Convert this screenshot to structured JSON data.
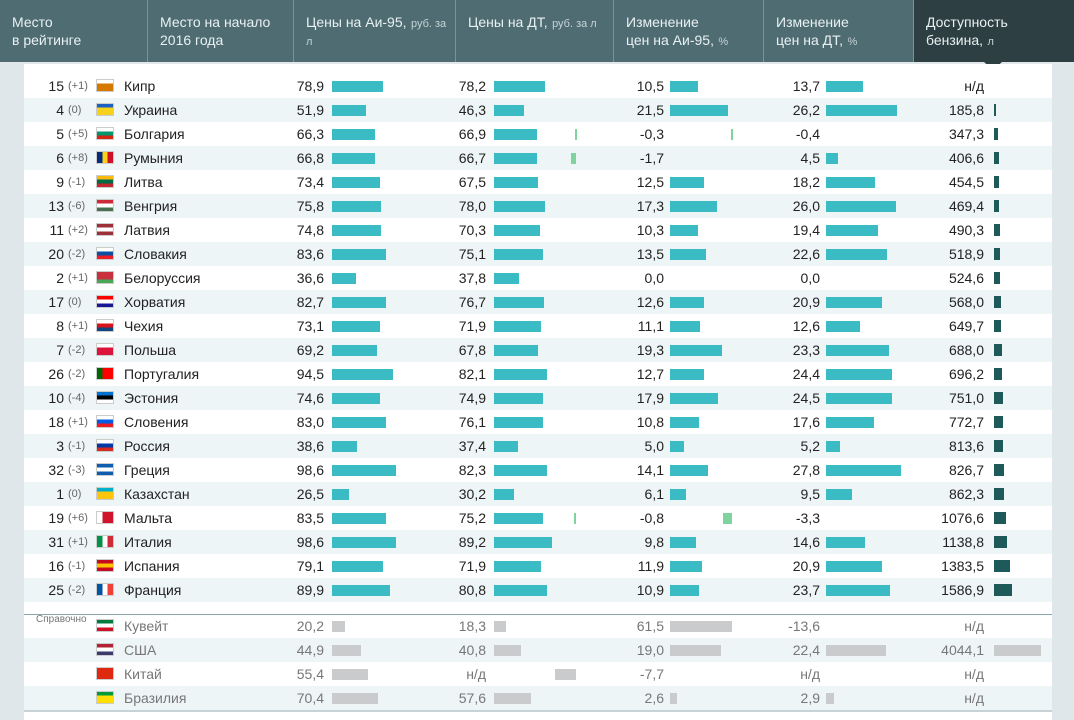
{
  "header": [
    {
      "title": "Место\nв рейтинге",
      "unit": ""
    },
    {
      "title": "Место на начало\n2016 года",
      "unit": ""
    },
    {
      "title": "Цены на Аи-95,",
      "unit": "руб. за л"
    },
    {
      "title": "Цены на ДТ,",
      "unit": "руб. за л"
    },
    {
      "title": "Изменение\nцен на Аи-95,",
      "unit": "%"
    },
    {
      "title": "Изменение\nцен на ДТ,",
      "unit": "%"
    },
    {
      "title": "Доступность\nбензина,",
      "unit": "л"
    }
  ],
  "reference_label": "Справочно",
  "colors": {
    "header": "#4f6c72",
    "header_active": "#2d3f43",
    "bar": "#3bbcc4",
    "bar_negative": "#7fd39f",
    "bar_reference": "#c9cbcd",
    "bar_affordability": "#1f5a5a"
  },
  "chart_data": {
    "type": "table",
    "columns": [
      "Место в рейтинге",
      "Место на начало 2016 года",
      "Цены на Аи-95",
      "Цены на ДТ",
      "Изменение цен на Аи-95",
      "Изменение цен на ДТ",
      "Доступность бензина"
    ],
    "rows": [
      {
        "rank": "15",
        "change": "(+1)",
        "country": "Кипр",
        "flag": "#ffffff",
        "flag2": "#d57800",
        "ai95": "78,9",
        "ai95_v": 78.9,
        "dt": "78,2",
        "dt_v": 78.2,
        "ai95_chg": "10,5",
        "ai95_chg_v": 10.5,
        "dt_chg": "13,7",
        "dt_chg_v": 13.7,
        "afford": "н/д",
        "afford_v": 0
      },
      {
        "rank": "4",
        "change": "(0)",
        "country": "Украина",
        "flag": "#1c5fc5",
        "flag2": "#f7d21c",
        "ai95": "51,9",
        "ai95_v": 51.9,
        "dt": "46,3",
        "dt_v": 46.3,
        "ai95_chg": "21,5",
        "ai95_chg_v": 21.5,
        "dt_chg": "26,2",
        "dt_chg_v": 26.2,
        "afford": "185,8",
        "afford_v": 185.8
      },
      {
        "rank": "5",
        "change": "(+5)",
        "country": "Болгария",
        "flag": "#ffffff",
        "flag2": "#00966e",
        "flag3": "#d62612",
        "ai95": "66,3",
        "ai95_v": 66.3,
        "dt": "66,9",
        "dt_v": 66.9,
        "ai95_chg": "-0,3",
        "ai95_chg_v": -0.3,
        "dt_chg": "-0,4",
        "dt_chg_v": -0.4,
        "afford": "347,3",
        "afford_v": 347.3
      },
      {
        "rank": "6",
        "change": "(+8)",
        "country": "Румыния",
        "flag": "#002b7f",
        "flag2": "#fcd116",
        "flag3": "#ce1126",
        "vertical": true,
        "ai95": "66,8",
        "ai95_v": 66.8,
        "dt": "66,7",
        "dt_v": 66.7,
        "ai95_chg": "-1,7",
        "ai95_chg_v": -1.7,
        "dt_chg": "4,5",
        "dt_chg_v": 4.5,
        "afford": "406,6",
        "afford_v": 406.6
      },
      {
        "rank": "9",
        "change": "(-1)",
        "country": "Литва",
        "flag": "#fdb913",
        "flag2": "#006a44",
        "flag3": "#c1272d",
        "ai95": "73,4",
        "ai95_v": 73.4,
        "dt": "67,5",
        "dt_v": 67.5,
        "ai95_chg": "12,5",
        "ai95_chg_v": 12.5,
        "dt_chg": "18,2",
        "dt_chg_v": 18.2,
        "afford": "454,5",
        "afford_v": 454.5
      },
      {
        "rank": "13",
        "change": "(-6)",
        "country": "Венгрия",
        "flag": "#ce2939",
        "flag2": "#ffffff",
        "flag3": "#477050",
        "ai95": "75,8",
        "ai95_v": 75.8,
        "dt": "78,0",
        "dt_v": 78.0,
        "ai95_chg": "17,3",
        "ai95_chg_v": 17.3,
        "dt_chg": "26,0",
        "dt_chg_v": 26.0,
        "afford": "469,4",
        "afford_v": 469.4
      },
      {
        "rank": "11",
        "change": "(+2)",
        "country": "Латвия",
        "flag": "#9e3039",
        "flag2": "#ffffff",
        "flag3": "#9e3039",
        "ai95": "74,8",
        "ai95_v": 74.8,
        "dt": "70,3",
        "dt_v": 70.3,
        "ai95_chg": "10,3",
        "ai95_chg_v": 10.3,
        "dt_chg": "19,4",
        "dt_chg_v": 19.4,
        "afford": "490,3",
        "afford_v": 490.3
      },
      {
        "rank": "20",
        "change": "(-2)",
        "country": "Словакия",
        "flag": "#ffffff",
        "flag2": "#0b4ea2",
        "flag3": "#ee1c25",
        "ai95": "83,6",
        "ai95_v": 83.6,
        "dt": "75,1",
        "dt_v": 75.1,
        "ai95_chg": "13,5",
        "ai95_chg_v": 13.5,
        "dt_chg": "22,6",
        "dt_chg_v": 22.6,
        "afford": "518,9",
        "afford_v": 518.9
      },
      {
        "rank": "2",
        "change": "(+1)",
        "country": "Белоруссия",
        "flag": "#c8313e",
        "flag2": "#c8313e",
        "flag3": "#4aa657",
        "ai95": "36,6",
        "ai95_v": 36.6,
        "dt": "37,8",
        "dt_v": 37.8,
        "ai95_chg": "0,0",
        "ai95_chg_v": 0,
        "dt_chg": "0,0",
        "dt_chg_v": 0,
        "afford": "524,6",
        "afford_v": 524.6
      },
      {
        "rank": "17",
        "change": "(0)",
        "country": "Хорватия",
        "flag": "#ff0000",
        "flag2": "#ffffff",
        "flag3": "#171796",
        "ai95": "82,7",
        "ai95_v": 82.7,
        "dt": "76,7",
        "dt_v": 76.7,
        "ai95_chg": "12,6",
        "ai95_chg_v": 12.6,
        "dt_chg": "20,9",
        "dt_chg_v": 20.9,
        "afford": "568,0",
        "afford_v": 568.0
      },
      {
        "rank": "8",
        "change": "(+1)",
        "country": "Чехия",
        "flag": "#ffffff",
        "flag2": "#d7141a",
        "flag3": "#11457e",
        "ai95": "73,1",
        "ai95_v": 73.1,
        "dt": "71,9",
        "dt_v": 71.9,
        "ai95_chg": "11,1",
        "ai95_chg_v": 11.1,
        "dt_chg": "12,6",
        "dt_chg_v": 12.6,
        "afford": "649,7",
        "afford_v": 649.7
      },
      {
        "rank": "7",
        "change": "(-2)",
        "country": "Польша",
        "flag": "#ffffff",
        "flag2": "#dc143c",
        "ai95": "69,2",
        "ai95_v": 69.2,
        "dt": "67,8",
        "dt_v": 67.8,
        "ai95_chg": "19,3",
        "ai95_chg_v": 19.3,
        "dt_chg": "23,3",
        "dt_chg_v": 23.3,
        "afford": "688,0",
        "afford_v": 688.0
      },
      {
        "rank": "26",
        "change": "(-2)",
        "country": "Португалия",
        "flag": "#006600",
        "flag2": "#ff0000",
        "vertical": true,
        "ai95": "94,5",
        "ai95_v": 94.5,
        "dt": "82,1",
        "dt_v": 82.1,
        "ai95_chg": "12,7",
        "ai95_chg_v": 12.7,
        "dt_chg": "24,4",
        "dt_chg_v": 24.4,
        "afford": "696,2",
        "afford_v": 696.2
      },
      {
        "rank": "10",
        "change": "(-4)",
        "country": "Эстония",
        "flag": "#0072ce",
        "flag2": "#000000",
        "flag3": "#ffffff",
        "ai95": "74,6",
        "ai95_v": 74.6,
        "dt": "74,9",
        "dt_v": 74.9,
        "ai95_chg": "17,9",
        "ai95_chg_v": 17.9,
        "dt_chg": "24,5",
        "dt_chg_v": 24.5,
        "afford": "751,0",
        "afford_v": 751.0
      },
      {
        "rank": "18",
        "change": "(+1)",
        "country": "Словения",
        "flag": "#ffffff",
        "flag2": "#005ce5",
        "flag3": "#ed1c24",
        "ai95": "83,0",
        "ai95_v": 83.0,
        "dt": "76,1",
        "dt_v": 76.1,
        "ai95_chg": "10,8",
        "ai95_chg_v": 10.8,
        "dt_chg": "17,6",
        "dt_chg_v": 17.6,
        "afford": "772,7",
        "afford_v": 772.7
      },
      {
        "rank": "3",
        "change": "(-1)",
        "country": "Россия",
        "flag": "#ffffff",
        "flag2": "#0039a6",
        "flag3": "#d52b1e",
        "ai95": "38,6",
        "ai95_v": 38.6,
        "dt": "37,4",
        "dt_v": 37.4,
        "ai95_chg": "5,0",
        "ai95_chg_v": 5.0,
        "dt_chg": "5,2",
        "dt_chg_v": 5.2,
        "afford": "813,6",
        "afford_v": 813.6
      },
      {
        "rank": "32",
        "change": "(-3)",
        "country": "Греция",
        "flag": "#0d5eaf",
        "flag2": "#ffffff",
        "flag3": "#0d5eaf",
        "ai95": "98,6",
        "ai95_v": 98.6,
        "dt": "82,3",
        "dt_v": 82.3,
        "ai95_chg": "14,1",
        "ai95_chg_v": 14.1,
        "dt_chg": "27,8",
        "dt_chg_v": 27.8,
        "afford": "826,7",
        "afford_v": 826.7
      },
      {
        "rank": "1",
        "change": "(0)",
        "country": "Казахстан",
        "flag": "#00afca",
        "flag2": "#fec50c",
        "ai95": "26,5",
        "ai95_v": 26.5,
        "dt": "30,2",
        "dt_v": 30.2,
        "ai95_chg": "6,1",
        "ai95_chg_v": 6.1,
        "dt_chg": "9,5",
        "dt_chg_v": 9.5,
        "afford": "862,3",
        "afford_v": 862.3
      },
      {
        "rank": "19",
        "change": "(+6)",
        "country": "Мальта",
        "flag": "#ffffff",
        "flag2": "#cf142b",
        "vertical": true,
        "ai95": "83,5",
        "ai95_v": 83.5,
        "dt": "75,2",
        "dt_v": 75.2,
        "ai95_chg": "-0,8",
        "ai95_chg_v": -0.8,
        "dt_chg": "-3,3",
        "dt_chg_v": -3.3,
        "afford": "1076,6",
        "afford_v": 1076.6
      },
      {
        "rank": "31",
        "change": "(+1)",
        "country": "Италия",
        "flag": "#009246",
        "flag2": "#ffffff",
        "flag3": "#ce2b37",
        "vertical": true,
        "ai95": "98,6",
        "ai95_v": 98.6,
        "dt": "89,2",
        "dt_v": 89.2,
        "ai95_chg": "9,8",
        "ai95_chg_v": 9.8,
        "dt_chg": "14,6",
        "dt_chg_v": 14.6,
        "afford": "1138,8",
        "afford_v": 1138.8
      },
      {
        "rank": "16",
        "change": "(-1)",
        "country": "Испания",
        "flag": "#c60b1e",
        "flag2": "#ffc400",
        "flag3": "#c60b1e",
        "ai95": "79,1",
        "ai95_v": 79.1,
        "dt": "71,9",
        "dt_v": 71.9,
        "ai95_chg": "11,9",
        "ai95_chg_v": 11.9,
        "dt_chg": "20,9",
        "dt_chg_v": 20.9,
        "afford": "1383,5",
        "afford_v": 1383.5
      },
      {
        "rank": "25",
        "change": "(-2)",
        "country": "Франция",
        "flag": "#0055a4",
        "flag2": "#ffffff",
        "flag3": "#ef4135",
        "vertical": true,
        "ai95": "89,9",
        "ai95_v": 89.9,
        "dt": "80,8",
        "dt_v": 80.8,
        "ai95_chg": "10,9",
        "ai95_chg_v": 10.9,
        "dt_chg": "23,7",
        "dt_chg_v": 23.7,
        "afford": "1586,9",
        "afford_v": 1586.9
      }
    ],
    "reference_rows": [
      {
        "country": "Кувейт",
        "flag": "#007a3d",
        "flag2": "#ffffff",
        "flag3": "#ce1126",
        "ai95": "20,2",
        "ai95_v": 20.2,
        "dt": "18,3",
        "dt_v": 18.3,
        "ai95_chg": "61,5",
        "ai95_chg_v": 61.5,
        "dt_chg": "-13,6",
        "dt_chg_v": -13.6,
        "afford": "н/д",
        "afford_v": 0
      },
      {
        "country": "США",
        "flag": "#b22234",
        "flag2": "#ffffff",
        "flag3": "#3c3b6e",
        "ai95": "44,9",
        "ai95_v": 44.9,
        "dt": "40,8",
        "dt_v": 40.8,
        "ai95_chg": "19,0",
        "ai95_chg_v": 19.0,
        "dt_chg": "22,4",
        "dt_chg_v": 22.4,
        "afford": "4044,1",
        "afford_v": 4044.1
      },
      {
        "country": "Китай",
        "flag": "#de2910",
        "flag2": "#de2910",
        "ai95": "55,4",
        "ai95_v": 55.4,
        "dt": "н/д",
        "dt_v": 0,
        "ai95_chg": "-7,7",
        "ai95_chg_v": -7.7,
        "dt_chg": "н/д",
        "dt_chg_v": 0,
        "afford": "н/д",
        "afford_v": 0
      },
      {
        "country": "Бразилия",
        "flag": "#009c3b",
        "flag2": "#ffdf00",
        "ai95": "70,4",
        "ai95_v": 70.4,
        "dt": "57,6",
        "dt_v": 57.6,
        "ai95_chg": "2,6",
        "ai95_chg_v": 2.6,
        "dt_chg": "2,9",
        "dt_chg_v": 2.9,
        "afford": "н/д",
        "afford_v": 0
      }
    ]
  }
}
